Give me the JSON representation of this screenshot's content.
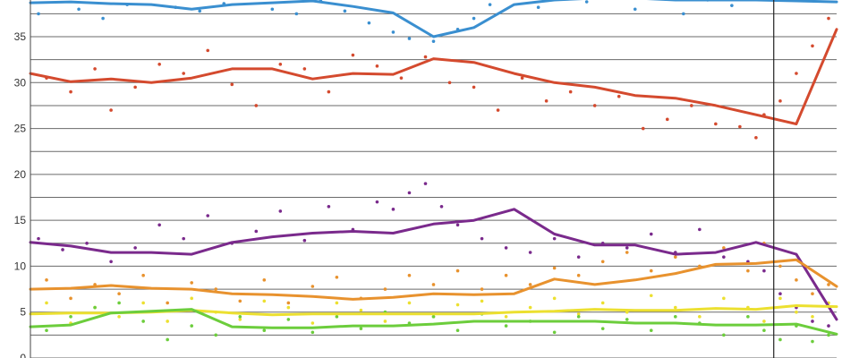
{
  "chart_data": {
    "type": "line",
    "title": "",
    "xlabel": "",
    "ylabel": "",
    "x": [
      0,
      5,
      10,
      15,
      20,
      25,
      30,
      35,
      40,
      45,
      50,
      55,
      60,
      65,
      70,
      75,
      80,
      85,
      90,
      95,
      100
    ],
    "xlim": [
      0,
      100
    ],
    "ylim": [
      0,
      39
    ],
    "yticks": [
      "0",
      "5",
      "10",
      "15",
      "20",
      "25",
      "30",
      "35"
    ],
    "grid": true,
    "legend": "none",
    "event_marker_x": 92.2,
    "series": [
      {
        "color": "#3a8fd0",
        "values": [
          38.7,
          38.8,
          38.6,
          38.5,
          38.0,
          38.5,
          38.7,
          38.9,
          38.3,
          37.6,
          35.0,
          36.0,
          38.5,
          39.0,
          39.2,
          39.2,
          39.0,
          39.0,
          39.0,
          38.9,
          38.8
        ],
        "points": [
          [
            1,
            37.5
          ],
          [
            3,
            39.5
          ],
          [
            6,
            38.0
          ],
          [
            9,
            37.0
          ],
          [
            12,
            38.5
          ],
          [
            15,
            39.4
          ],
          [
            18,
            38.2
          ],
          [
            21,
            37.8
          ],
          [
            24,
            38.6
          ],
          [
            27,
            39.3
          ],
          [
            30,
            38.0
          ],
          [
            33,
            37.5
          ],
          [
            36,
            38.9
          ],
          [
            39,
            37.8
          ],
          [
            42,
            36.5
          ],
          [
            45,
            35.5
          ],
          [
            47,
            34.8
          ],
          [
            50,
            34.5
          ],
          [
            53,
            35.8
          ],
          [
            55,
            37.0
          ],
          [
            57,
            38.5
          ],
          [
            60,
            39.5
          ],
          [
            63,
            38.2
          ],
          [
            66,
            39.2
          ],
          [
            69,
            38.8
          ],
          [
            72,
            39.5
          ],
          [
            75,
            38.0
          ],
          [
            78,
            39.3
          ],
          [
            81,
            37.5
          ],
          [
            84,
            39.0
          ],
          [
            87,
            38.4
          ],
          [
            89,
            39.5
          ]
        ]
      },
      {
        "color": "#d44a2e",
        "values": [
          31.0,
          30.1,
          30.4,
          30.0,
          30.5,
          31.5,
          31.5,
          30.4,
          31.0,
          30.9,
          32.6,
          32.2,
          31.0,
          30.0,
          29.5,
          28.6,
          28.3,
          27.5,
          26.5,
          25.5,
          35.8
        ],
        "points": [
          [
            2,
            30.5
          ],
          [
            5,
            29.0
          ],
          [
            8,
            31.5
          ],
          [
            10,
            27.0
          ],
          [
            13,
            29.5
          ],
          [
            16,
            32.0
          ],
          [
            19,
            31.0
          ],
          [
            22,
            33.5
          ],
          [
            25,
            29.8
          ],
          [
            28,
            27.5
          ],
          [
            31,
            32.0
          ],
          [
            34,
            31.5
          ],
          [
            37,
            29.0
          ],
          [
            40,
            33.0
          ],
          [
            43,
            31.8
          ],
          [
            46,
            30.5
          ],
          [
            49,
            32.8
          ],
          [
            52,
            30.0
          ],
          [
            55,
            29.5
          ],
          [
            58,
            27.0
          ],
          [
            61,
            30.5
          ],
          [
            64,
            28.0
          ],
          [
            67,
            29.0
          ],
          [
            70,
            27.5
          ],
          [
            73,
            28.5
          ],
          [
            76,
            25.0
          ],
          [
            79,
            26.0
          ],
          [
            82,
            27.5
          ],
          [
            85,
            25.5
          ],
          [
            88,
            25.2
          ],
          [
            90,
            24.0
          ],
          [
            91,
            26.5
          ],
          [
            93,
            28.0
          ],
          [
            95,
            31.0
          ],
          [
            97,
            34.0
          ],
          [
            99,
            37.0
          ]
        ]
      },
      {
        "color": "#7a2a8c",
        "values": [
          12.6,
          12.2,
          11.5,
          11.5,
          11.3,
          12.6,
          13.2,
          13.6,
          13.8,
          13.6,
          14.6,
          15.0,
          16.2,
          13.5,
          12.3,
          12.3,
          11.3,
          11.5,
          12.6,
          11.3,
          4.2
        ],
        "points": [
          [
            1,
            13.0
          ],
          [
            4,
            11.8
          ],
          [
            7,
            12.5
          ],
          [
            10,
            10.5
          ],
          [
            13,
            12.0
          ],
          [
            16,
            14.5
          ],
          [
            19,
            13.0
          ],
          [
            22,
            15.5
          ],
          [
            25,
            12.5
          ],
          [
            28,
            13.8
          ],
          [
            31,
            16.0
          ],
          [
            34,
            12.8
          ],
          [
            37,
            16.5
          ],
          [
            40,
            14.0
          ],
          [
            43,
            17.0
          ],
          [
            45,
            16.2
          ],
          [
            47,
            18.0
          ],
          [
            49,
            19.0
          ],
          [
            51,
            16.5
          ],
          [
            53,
            14.5
          ],
          [
            56,
            13.0
          ],
          [
            59,
            12.0
          ],
          [
            62,
            11.5
          ],
          [
            65,
            13.0
          ],
          [
            68,
            11.0
          ],
          [
            71,
            12.5
          ],
          [
            74,
            12.0
          ],
          [
            77,
            13.5
          ],
          [
            80,
            11.5
          ],
          [
            83,
            14.0
          ],
          [
            86,
            11.0
          ],
          [
            89,
            10.5
          ],
          [
            91,
            9.5
          ],
          [
            93,
            7.0
          ],
          [
            95,
            5.5
          ],
          [
            97,
            4.0
          ],
          [
            99,
            3.5
          ]
        ]
      },
      {
        "color": "#e8922e",
        "values": [
          7.5,
          7.6,
          7.9,
          7.6,
          7.5,
          7.0,
          6.9,
          6.7,
          6.4,
          6.6,
          7.0,
          6.9,
          7.0,
          8.6,
          8.0,
          8.5,
          9.2,
          10.2,
          10.3,
          10.7,
          7.8
        ],
        "points": [
          [
            2,
            8.5
          ],
          [
            5,
            6.5
          ],
          [
            8,
            8.0
          ],
          [
            11,
            7.0
          ],
          [
            14,
            9.0
          ],
          [
            17,
            6.0
          ],
          [
            20,
            8.2
          ],
          [
            23,
            7.5
          ],
          [
            26,
            6.2
          ],
          [
            29,
            8.5
          ],
          [
            32,
            6.0
          ],
          [
            35,
            7.8
          ],
          [
            38,
            8.8
          ],
          [
            41,
            6.5
          ],
          [
            44,
            7.5
          ],
          [
            47,
            9.0
          ],
          [
            50,
            8.0
          ],
          [
            53,
            9.5
          ],
          [
            56,
            7.5
          ],
          [
            59,
            9.0
          ],
          [
            62,
            8.0
          ],
          [
            65,
            9.8
          ],
          [
            68,
            9.0
          ],
          [
            71,
            10.5
          ],
          [
            74,
            11.5
          ],
          [
            77,
            9.5
          ],
          [
            80,
            11.0
          ],
          [
            83,
            10.0
          ],
          [
            86,
            12.0
          ],
          [
            89,
            9.5
          ],
          [
            91,
            12.5
          ],
          [
            93,
            10.0
          ],
          [
            95,
            8.5
          ],
          [
            97,
            7.0
          ],
          [
            99,
            8.0
          ]
        ]
      },
      {
        "color": "#ece030",
        "values": [
          4.8,
          4.9,
          4.9,
          5.0,
          5.2,
          4.9,
          4.7,
          4.8,
          4.8,
          4.8,
          4.8,
          4.8,
          5.0,
          5.1,
          5.3,
          5.2,
          5.2,
          5.4,
          5.3,
          5.7,
          5.6
        ],
        "points": [
          [
            2,
            6.0
          ],
          [
            5,
            3.8
          ],
          [
            8,
            5.5
          ],
          [
            11,
            4.5
          ],
          [
            14,
            6.0
          ],
          [
            17,
            4.0
          ],
          [
            20,
            6.5
          ],
          [
            23,
            5.0
          ],
          [
            26,
            4.2
          ],
          [
            29,
            6.2
          ],
          [
            32,
            5.5
          ],
          [
            35,
            3.8
          ],
          [
            38,
            6.0
          ],
          [
            41,
            5.2
          ],
          [
            44,
            4.0
          ],
          [
            47,
            6.0
          ],
          [
            50,
            4.5
          ],
          [
            53,
            5.8
          ],
          [
            56,
            6.2
          ],
          [
            59,
            4.5
          ],
          [
            62,
            5.5
          ],
          [
            65,
            6.5
          ],
          [
            68,
            4.8
          ],
          [
            71,
            6.0
          ],
          [
            74,
            5.0
          ],
          [
            77,
            6.8
          ],
          [
            80,
            5.5
          ],
          [
            83,
            4.5
          ],
          [
            86,
            6.5
          ],
          [
            89,
            5.5
          ],
          [
            91,
            4.0
          ],
          [
            93,
            6.5
          ],
          [
            95,
            5.0
          ],
          [
            97,
            4.5
          ],
          [
            99,
            6.0
          ]
        ]
      },
      {
        "color": "#6ccd3c",
        "values": [
          3.4,
          3.6,
          4.9,
          5.1,
          5.3,
          3.4,
          3.3,
          3.3,
          3.5,
          3.5,
          3.7,
          4.0,
          4.0,
          4.0,
          4.0,
          3.8,
          3.8,
          3.6,
          3.6,
          3.7,
          2.6
        ],
        "points": [
          [
            2,
            3.0
          ],
          [
            5,
            4.5
          ],
          [
            8,
            5.5
          ],
          [
            11,
            6.0
          ],
          [
            14,
            4.0
          ],
          [
            17,
            2.0
          ],
          [
            20,
            3.5
          ],
          [
            23,
            2.5
          ],
          [
            26,
            4.5
          ],
          [
            29,
            3.0
          ],
          [
            32,
            4.2
          ],
          [
            35,
            2.8
          ],
          [
            38,
            4.5
          ],
          [
            41,
            3.2
          ],
          [
            44,
            5.0
          ],
          [
            47,
            3.8
          ],
          [
            50,
            4.5
          ],
          [
            53,
            3.0
          ],
          [
            56,
            4.8
          ],
          [
            59,
            3.5
          ],
          [
            62,
            4.0
          ],
          [
            65,
            2.8
          ],
          [
            68,
            4.5
          ],
          [
            71,
            3.2
          ],
          [
            74,
            4.2
          ],
          [
            77,
            3.0
          ],
          [
            80,
            4.5
          ],
          [
            83,
            3.8
          ],
          [
            86,
            2.5
          ],
          [
            89,
            4.5
          ],
          [
            91,
            3.0
          ],
          [
            93,
            2.0
          ],
          [
            95,
            3.5
          ],
          [
            97,
            1.8
          ],
          [
            99,
            2.5
          ]
        ]
      }
    ]
  }
}
